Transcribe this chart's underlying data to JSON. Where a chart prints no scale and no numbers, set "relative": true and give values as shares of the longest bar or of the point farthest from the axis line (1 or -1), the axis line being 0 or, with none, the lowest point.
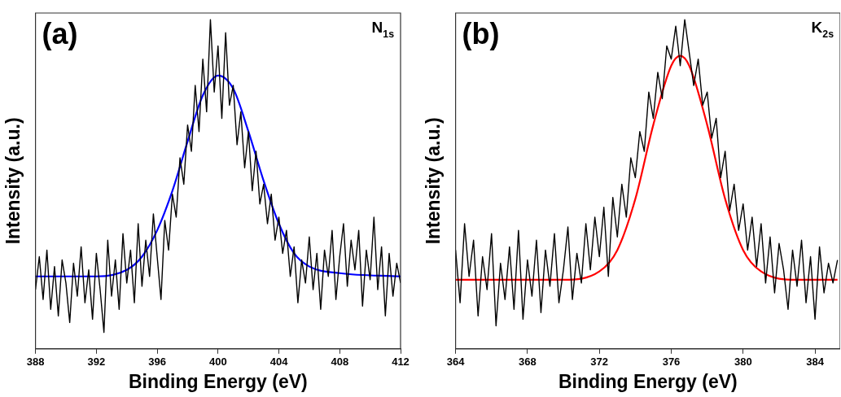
{
  "chart_data": [
    {
      "type": "line",
      "xlabel": "Binding Energy (eV)",
      "ylabel": "Intensity (a.u.)",
      "relative": true,
      "grid": false,
      "marker": "none",
      "annotations": [
        "(a)",
        "N$_{1s}$"
      ],
      "xlim": [
        388,
        412
      ],
      "xticks": [
        388,
        392,
        396,
        400,
        404,
        408,
        412
      ],
      "series": [
        {
          "color": "#000000",
          "x": [
            388,
            388.25,
            388.5,
            388.75,
            389,
            389.25,
            389.5,
            389.75,
            390,
            390.25,
            390.5,
            390.75,
            391,
            391.25,
            391.5,
            391.75,
            392,
            392.25,
            392.5,
            392.75,
            393,
            393.25,
            393.5,
            393.75,
            394,
            394.25,
            394.5,
            394.75,
            395,
            395.25,
            395.5,
            395.75,
            396,
            396.25,
            396.5,
            396.75,
            397,
            397.25,
            397.5,
            397.75,
            398,
            398.25,
            398.5,
            398.75,
            399,
            399.25,
            399.5,
            399.75,
            400,
            400.25,
            400.5,
            400.75,
            401,
            401.25,
            401.5,
            401.75,
            402,
            402.25,
            402.5,
            402.75,
            403,
            403.25,
            403.5,
            403.75,
            404,
            404.25,
            404.5,
            404.75,
            405,
            405.25,
            405.5,
            405.75,
            406,
            406.25,
            406.5,
            406.75,
            407,
            407.25,
            407.5,
            407.75,
            408,
            408.25,
            408.5,
            408.75,
            409,
            409.25,
            409.5,
            409.75,
            410,
            410.25,
            410.5,
            410.75,
            411,
            411.25,
            411.5,
            411.75,
            412
          ],
          "values": [
            0.18,
            0.28,
            0.15,
            0.3,
            0.12,
            0.25,
            0.1,
            0.27,
            0.2,
            0.08,
            0.26,
            0.16,
            0.31,
            0.14,
            0.24,
            0.09,
            0.29,
            0.18,
            0.05,
            0.33,
            0.16,
            0.27,
            0.12,
            0.35,
            0.2,
            0.3,
            0.14,
            0.38,
            0.19,
            0.33,
            0.22,
            0.41,
            0.28,
            0.15,
            0.39,
            0.3,
            0.47,
            0.4,
            0.58,
            0.5,
            0.68,
            0.6,
            0.8,
            0.66,
            0.88,
            0.72,
            1.0,
            0.78,
            0.92,
            0.7,
            0.96,
            0.74,
            0.8,
            0.62,
            0.72,
            0.55,
            0.66,
            0.48,
            0.6,
            0.44,
            0.5,
            0.38,
            0.47,
            0.33,
            0.4,
            0.29,
            0.36,
            0.22,
            0.31,
            0.14,
            0.27,
            0.2,
            0.34,
            0.18,
            0.29,
            0.12,
            0.3,
            0.22,
            0.36,
            0.15,
            0.28,
            0.38,
            0.19,
            0.33,
            0.24,
            0.36,
            0.13,
            0.3,
            0.21,
            0.4,
            0.18,
            0.31,
            0.1,
            0.29,
            0.16,
            0.26,
            0.2
          ]
        },
        {
          "color": "#0000ff",
          "x": [
            388,
            392,
            394,
            395,
            396,
            397,
            398,
            399,
            400,
            401,
            402,
            403,
            404,
            405,
            406,
            408,
            412
          ],
          "values": [
            0.22,
            0.22,
            0.24,
            0.28,
            0.36,
            0.48,
            0.63,
            0.77,
            0.83,
            0.79,
            0.66,
            0.51,
            0.38,
            0.29,
            0.25,
            0.23,
            0.22
          ]
        }
      ]
    },
    {
      "type": "line",
      "xlabel": "Binding Energy (eV)",
      "ylabel": "Intensity (a.u.)",
      "relative": true,
      "grid": false,
      "marker": "none",
      "annotations": [
        "(b)",
        "K$_{2s}$"
      ],
      "xlim": [
        364,
        385.4
      ],
      "xticks": [
        364,
        368,
        372,
        376,
        380,
        384
      ],
      "series": [
        {
          "color": "#000000",
          "x": [
            364,
            364.25,
            364.5,
            364.75,
            365,
            365.25,
            365.5,
            365.75,
            366,
            366.25,
            366.5,
            366.75,
            367,
            367.25,
            367.5,
            367.75,
            368,
            368.25,
            368.5,
            368.75,
            369,
            369.25,
            369.5,
            369.75,
            370,
            370.25,
            370.5,
            370.75,
            371,
            371.25,
            371.5,
            371.75,
            372,
            372.25,
            372.5,
            372.75,
            373,
            373.25,
            373.5,
            373.75,
            374,
            374.25,
            374.5,
            374.75,
            375,
            375.25,
            375.5,
            375.75,
            376,
            376.25,
            376.5,
            376.75,
            377,
            377.25,
            377.5,
            377.75,
            378,
            378.25,
            378.5,
            378.75,
            379,
            379.25,
            379.5,
            379.75,
            380,
            380.25,
            380.5,
            380.75,
            381,
            381.25,
            381.5,
            381.75,
            382,
            382.25,
            382.5,
            382.75,
            383,
            383.25,
            383.5,
            383.75,
            384,
            384.25,
            384.5,
            384.75,
            385,
            385.25
          ],
          "values": [
            0.3,
            0.14,
            0.38,
            0.22,
            0.33,
            0.1,
            0.28,
            0.18,
            0.35,
            0.07,
            0.26,
            0.15,
            0.31,
            0.12,
            0.36,
            0.09,
            0.27,
            0.16,
            0.33,
            0.11,
            0.3,
            0.19,
            0.35,
            0.14,
            0.24,
            0.37,
            0.15,
            0.29,
            0.2,
            0.38,
            0.24,
            0.4,
            0.28,
            0.43,
            0.22,
            0.46,
            0.34,
            0.5,
            0.4,
            0.58,
            0.52,
            0.66,
            0.6,
            0.78,
            0.7,
            0.84,
            0.76,
            0.92,
            0.88,
            0.98,
            0.86,
            1.0,
            0.9,
            0.8,
            0.88,
            0.74,
            0.78,
            0.64,
            0.7,
            0.52,
            0.6,
            0.42,
            0.5,
            0.36,
            0.44,
            0.3,
            0.4,
            0.25,
            0.38,
            0.2,
            0.34,
            0.17,
            0.32,
            0.24,
            0.12,
            0.3,
            0.19,
            0.33,
            0.14,
            0.28,
            0.09,
            0.31,
            0.17,
            0.26,
            0.2,
            0.27
          ]
        },
        {
          "color": "#ff0000",
          "x": [
            364,
            370,
            372,
            373,
            374,
            375,
            376,
            376.5,
            377,
            378,
            379,
            380,
            381,
            383,
            385.25
          ],
          "values": [
            0.21,
            0.21,
            0.235,
            0.3,
            0.455,
            0.68,
            0.86,
            0.89,
            0.86,
            0.68,
            0.455,
            0.3,
            0.235,
            0.21,
            0.21
          ]
        }
      ]
    }
  ]
}
